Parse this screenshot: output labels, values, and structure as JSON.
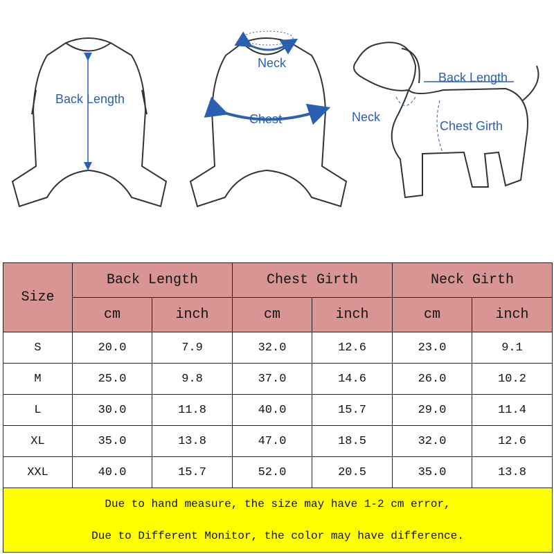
{
  "illustrations": {
    "front_garment": {
      "label": "Back Length"
    },
    "back_garment": {
      "neck_label": "Neck",
      "chest_label": "Chest"
    },
    "dog": {
      "back_length_label": "Back Length",
      "neck_label": "Neck",
      "chest_girth_label": "Chest Girth"
    },
    "arrow_color": "#2b5fb0"
  },
  "table": {
    "size_header": "Size",
    "groups": [
      "Back Length",
      "Chest Girth",
      "Neck Girth"
    ],
    "units": [
      "cm",
      "inch",
      "cm",
      "inch",
      "cm",
      "inch"
    ],
    "rows": [
      {
        "size": "S",
        "values": [
          "20.0",
          "7.9",
          "32.0",
          "12.6",
          "23.0",
          "9.1"
        ]
      },
      {
        "size": "M",
        "values": [
          "25.0",
          "9.8",
          "37.0",
          "14.6",
          "26.0",
          "10.2"
        ]
      },
      {
        "size": "L",
        "values": [
          "30.0",
          "11.8",
          "40.0",
          "15.7",
          "29.0",
          "11.4"
        ]
      },
      {
        "size": "XL",
        "values": [
          "35.0",
          "13.8",
          "47.0",
          "18.5",
          "32.0",
          "12.6"
        ]
      },
      {
        "size": "XXL",
        "values": [
          "40.0",
          "15.7",
          "52.0",
          "20.5",
          "35.0",
          "13.8"
        ]
      }
    ],
    "header_color": "#d99494",
    "note_color": "#ffff00"
  },
  "notes": [
    "Due to hand measure, the size may have 1-2 cm error,",
    "Due to Different Monitor, the color may have difference."
  ]
}
